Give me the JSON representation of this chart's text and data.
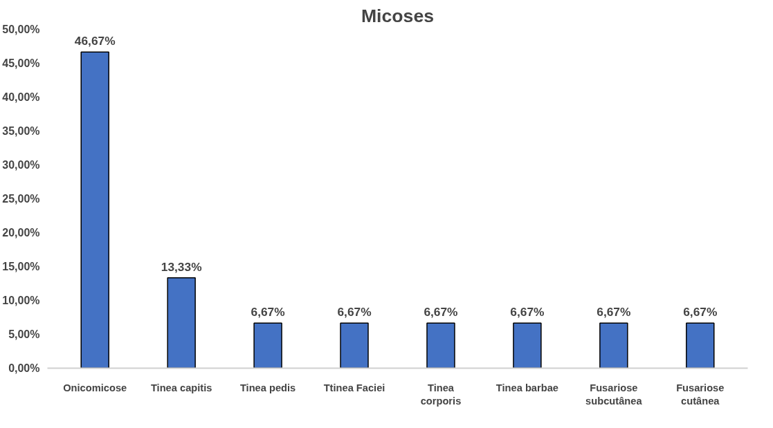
{
  "chart_data": {
    "type": "bar",
    "title": "Micoses",
    "categories": [
      "Onicomicose",
      "Tinea capitis",
      "Tinea pedis",
      "Ttinea Faciei",
      "Tinea corporis",
      "Tinea barbae",
      "Fusariose subcutânea",
      "Fusariose cutânea"
    ],
    "values": [
      46.67,
      13.33,
      6.67,
      6.67,
      6.67,
      6.67,
      6.67,
      6.67
    ],
    "value_labels": [
      "46,67%",
      "13,33%",
      "6,67%",
      "6,67%",
      "6,67%",
      "6,67%",
      "6,67%",
      "6,67%"
    ],
    "color": "#4472c4",
    "ylim": [
      0,
      50
    ],
    "yticks": [
      {
        "value": 0,
        "label": "0,00%"
      },
      {
        "value": 5,
        "label": "5,00%"
      },
      {
        "value": 10,
        "label": "10,00%"
      },
      {
        "value": 15,
        "label": "15,00%"
      },
      {
        "value": 20,
        "label": "20,00%"
      },
      {
        "value": 25,
        "label": "25,00%"
      },
      {
        "value": 30,
        "label": "30,00%"
      },
      {
        "value": 35,
        "label": "35,00%"
      },
      {
        "value": 40,
        "label": "40,00%"
      },
      {
        "value": 45,
        "label": "45,00%"
      },
      {
        "value": 50,
        "label": "50,00%"
      }
    ],
    "grid": false
  }
}
